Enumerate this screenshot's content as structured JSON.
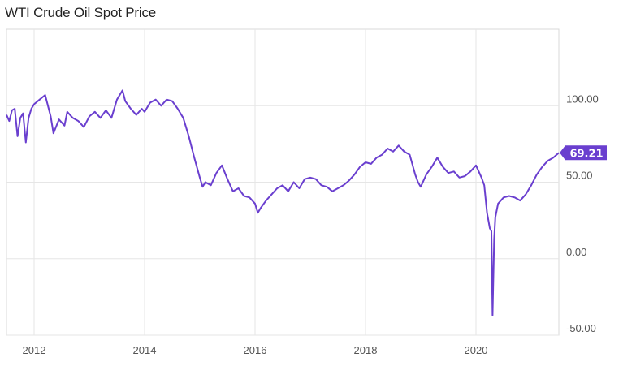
{
  "chart_data": {
    "type": "line",
    "title": "WTI Crude Oil Spot Price",
    "xlabel": "",
    "ylabel": "",
    "xlim": [
      2011.5,
      2021.5
    ],
    "ylim": [
      -50,
      150
    ],
    "x_ticks": [
      2012,
      2014,
      2016,
      2018,
      2020
    ],
    "x_tick_labels": [
      "2012",
      "2014",
      "2016",
      "2018",
      "2020"
    ],
    "y_ticks": [
      -50,
      0,
      50,
      100
    ],
    "y_tick_labels": [
      "-50.00",
      "0.00",
      "50.00",
      "100.00"
    ],
    "grid": true,
    "line_color": "#6a3fcf",
    "last_value_label": "69.21",
    "series": [
      {
        "x": [
          2011.5,
          2011.55,
          2011.6,
          2011.65,
          2011.7,
          2011.75,
          2011.8,
          2011.85,
          2011.9,
          2011.95,
          2012.0,
          2012.1,
          2012.2,
          2012.3,
          2012.35,
          2012.45,
          2012.55,
          2012.6,
          2012.7,
          2012.8,
          2012.9,
          2013.0,
          2013.1,
          2013.2,
          2013.3,
          2013.4,
          2013.5,
          2013.6,
          2013.65,
          2013.75,
          2013.85,
          2013.95,
          2014.0,
          2014.1,
          2014.2,
          2014.3,
          2014.4,
          2014.5,
          2014.6,
          2014.7,
          2014.8,
          2014.9,
          2015.0,
          2015.05,
          2015.1,
          2015.2,
          2015.3,
          2015.4,
          2015.5,
          2015.6,
          2015.7,
          2015.8,
          2015.9,
          2016.0,
          2016.05,
          2016.1,
          2016.2,
          2016.3,
          2016.4,
          2016.5,
          2016.6,
          2016.7,
          2016.8,
          2016.9,
          2017.0,
          2017.1,
          2017.2,
          2017.3,
          2017.4,
          2017.5,
          2017.6,
          2017.7,
          2017.8,
          2017.9,
          2018.0,
          2018.1,
          2018.2,
          2018.3,
          2018.4,
          2018.5,
          2018.6,
          2018.7,
          2018.8,
          2018.9,
          2018.95,
          2019.0,
          2019.1,
          2019.2,
          2019.3,
          2019.4,
          2019.5,
          2019.6,
          2019.7,
          2019.8,
          2019.9,
          2020.0,
          2020.05,
          2020.1,
          2020.15,
          2020.2,
          2020.25,
          2020.28,
          2020.3,
          2020.33,
          2020.35,
          2020.4,
          2020.5,
          2020.6,
          2020.7,
          2020.8,
          2020.9,
          2021.0,
          2021.1,
          2021.2,
          2021.3,
          2021.4,
          2021.5
        ],
        "y": [
          94,
          90,
          97,
          98,
          80,
          92,
          95,
          76,
          92,
          98,
          101,
          104,
          107,
          93,
          82,
          91,
          87,
          96,
          92,
          90,
          86,
          93,
          96,
          92,
          97,
          92,
          104,
          110,
          103,
          98,
          94,
          98,
          96,
          102,
          104,
          100,
          104,
          103,
          98,
          92,
          80,
          66,
          53,
          47,
          50,
          48,
          56,
          61,
          52,
          44,
          46,
          41,
          40,
          36,
          30,
          33,
          38,
          42,
          46,
          48,
          44,
          50,
          46,
          52,
          53,
          52,
          48,
          47,
          44,
          46,
          48,
          51,
          55,
          60,
          63,
          62,
          66,
          68,
          72,
          70,
          74,
          70,
          68,
          55,
          50,
          47,
          55,
          60,
          66,
          60,
          56,
          57,
          53,
          54,
          57,
          61,
          57,
          53,
          48,
          30,
          20,
          18,
          -37,
          13,
          27,
          36,
          40,
          41,
          40,
          38,
          42,
          48,
          55,
          60,
          64,
          66,
          69.21
        ]
      }
    ]
  }
}
